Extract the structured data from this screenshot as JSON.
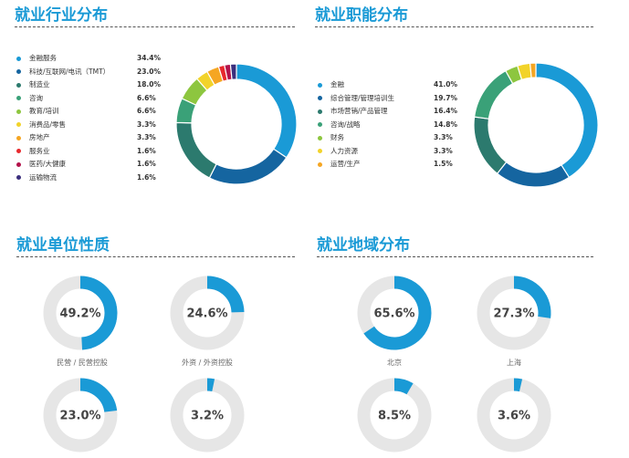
{
  "sections": {
    "industry": {
      "title": "就业行业分布"
    },
    "function": {
      "title": "就业职能分布"
    },
    "nature": {
      "title": "就业单位性质"
    },
    "region": {
      "title": "就业地域分布"
    }
  },
  "chart_data": [
    {
      "type": "pie",
      "title": "就业行业分布",
      "categories": [
        "金融服务",
        "科技/互联网/电讯（TMT）",
        "制造业",
        "咨询",
        "教育/培训",
        "消费品/零售",
        "房地产",
        "服务业",
        "医药/大健康",
        "运输物流"
      ],
      "values": [
        34.4,
        23.0,
        18.0,
        6.6,
        6.6,
        3.3,
        3.3,
        1.6,
        1.6,
        1.6
      ],
      "labels": [
        "34.4%",
        "23.0%",
        "18.0%",
        "6.6%",
        "6.6%",
        "3.3%",
        "3.3%",
        "1.6%",
        "1.6%",
        "1.6%"
      ],
      "colors": [
        "#1a9ad6",
        "#1565a0",
        "#2c7a6e",
        "#3aa178",
        "#8dc63f",
        "#f2d32a",
        "#f5a623",
        "#e8292d",
        "#b3134b",
        "#3b2f7d"
      ]
    },
    {
      "type": "pie",
      "title": "就业职能分布",
      "categories": [
        "金融",
        "综合管理/管理培训生",
        "市场营销/产品管理",
        "咨询/战略",
        "财务",
        "人力资源",
        "运营/生产"
      ],
      "values": [
        41.0,
        19.7,
        16.4,
        14.8,
        3.3,
        3.3,
        1.5
      ],
      "labels": [
        "41.0%",
        "19.7%",
        "16.4%",
        "14.8%",
        "3.3%",
        "3.3%",
        "1.5%"
      ],
      "colors": [
        "#1a9ad6",
        "#1565a0",
        "#2c7a6e",
        "#3aa178",
        "#8dc63f",
        "#f2d32a",
        "#f5a623"
      ]
    },
    {
      "type": "pie",
      "title": "就业单位性质",
      "categories": [
        "民营 / 民营控股",
        "外资 / 外资控股",
        "",
        ""
      ],
      "values": [
        49.2,
        24.6,
        23.0,
        3.2
      ],
      "labels": [
        "49.2%",
        "24.6%",
        "23.0%",
        "3.2%"
      ],
      "colors": [
        "#1a9ad6",
        "#e6e6e6"
      ]
    },
    {
      "type": "pie",
      "title": "就业地域分布",
      "categories": [
        "北京",
        "上海",
        "",
        ""
      ],
      "values": [
        65.6,
        27.3,
        8.5,
        3.6
      ],
      "labels": [
        "65.6%",
        "27.3%",
        "8.5%",
        "3.6%"
      ],
      "colors": [
        "#1a9ad6",
        "#e6e6e6"
      ]
    }
  ]
}
